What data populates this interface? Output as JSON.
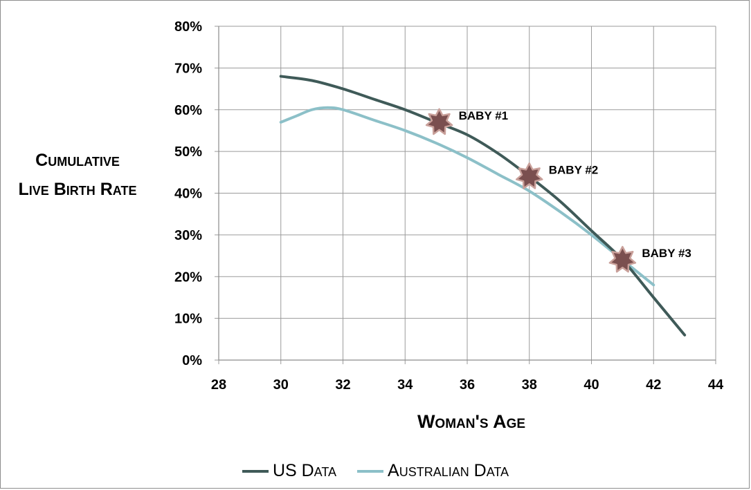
{
  "chart_data": {
    "type": "line",
    "xlabel": "Woman's Age",
    "ylabel_lines": [
      "Cumulative",
      "Live Birth Rate"
    ],
    "xlim": [
      28,
      44
    ],
    "ylim": [
      0,
      0.8
    ],
    "x_ticks": [
      28,
      30,
      32,
      34,
      36,
      38,
      40,
      42,
      44
    ],
    "y_ticks": [
      0,
      0.1,
      0.2,
      0.3,
      0.4,
      0.5,
      0.6,
      0.7,
      0.8
    ],
    "y_tick_labels": [
      "0%",
      "10%",
      "20%",
      "30%",
      "40%",
      "50%",
      "60%",
      "70%",
      "80%"
    ],
    "grid": true,
    "legend_position": "bottom",
    "series": [
      {
        "name": "US Data",
        "color": "#3f5a58",
        "x": [
          30,
          31,
          32,
          33,
          34,
          35,
          36,
          37,
          38,
          39,
          40,
          41,
          42,
          43
        ],
        "y": [
          0.68,
          0.67,
          0.65,
          0.625,
          0.6,
          0.57,
          0.54,
          0.495,
          0.44,
          0.38,
          0.31,
          0.24,
          0.15,
          0.06
        ]
      },
      {
        "name": "Australian Data",
        "color": "#8cc0c8",
        "x": [
          30,
          30.5,
          31,
          31.5,
          32,
          33,
          34,
          35,
          36,
          37,
          38,
          39,
          40,
          41,
          42
        ],
        "y": [
          0.57,
          0.585,
          0.6,
          0.605,
          0.6,
          0.575,
          0.55,
          0.52,
          0.485,
          0.445,
          0.405,
          0.355,
          0.3,
          0.24,
          0.18
        ]
      }
    ],
    "annotations": [
      {
        "label": "BABY #1",
        "x": 35.1,
        "y": 0.57
      },
      {
        "label": "BABY #2",
        "x": 38.0,
        "y": 0.44
      },
      {
        "label": "BABY #3",
        "x": 41.0,
        "y": 0.24
      }
    ],
    "marker_color": "#7a4f4f",
    "marker_outline": "#c9a09a"
  }
}
